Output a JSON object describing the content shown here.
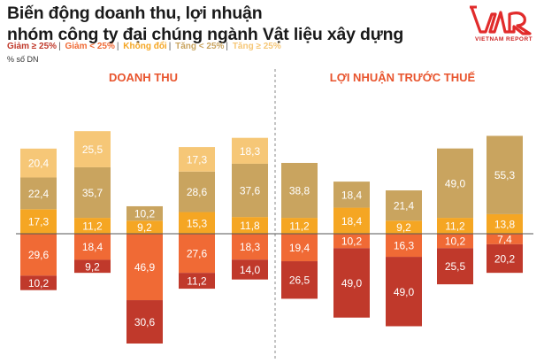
{
  "header": {
    "title_line1": "Biến động doanh thu, lợi nhuận",
    "title_line2": "nhóm công ty đại chúng ngành Vật liệu xây dựng",
    "unit": "% số DN"
  },
  "brand": {
    "logo_text": "VNR",
    "logo_sub": "VIETNAM REPORT",
    "color": "#e12b2b"
  },
  "legend": [
    {
      "label": "Giảm ≥ 25%",
      "color": "#c0392b"
    },
    {
      "label": "Giảm < 25%",
      "color": "#f06a35"
    },
    {
      "label": "Không đổi",
      "color": "#f5a623"
    },
    {
      "label": "Tăng < 25%",
      "color": "#c9a45f"
    },
    {
      "label": "Tăng ≥ 25%",
      "color": "#f6c777"
    }
  ],
  "chart_data": {
    "type": "bar",
    "stacking": "diverging",
    "groups": [
      {
        "title": "DOANH THU",
        "title_color": "#e8542d"
      },
      {
        "title": "LỢI NHUẬN TRƯỚC THUẾ",
        "title_color": "#e8542d"
      }
    ],
    "columns": [
      {
        "group": 0,
        "up": [
          17.3,
          22.4,
          20.4
        ],
        "down": [
          29.6,
          10.2
        ]
      },
      {
        "group": 0,
        "up": [
          11.2,
          35.7,
          25.5
        ],
        "down": [
          18.4,
          9.2
        ]
      },
      {
        "group": 0,
        "up": [
          9.2,
          10.2
        ],
        "down": [
          46.9,
          30.6
        ]
      },
      {
        "group": 0,
        "up": [
          15.3,
          28.6,
          17.3
        ],
        "down": [
          27.6,
          11.2
        ]
      },
      {
        "group": 0,
        "up": [
          11.8,
          37.6,
          18.3
        ],
        "down": [
          18.3,
          14.0
        ]
      },
      {
        "group": 1,
        "up": [
          11.2,
          38.8
        ],
        "down": [
          19.4,
          26.5
        ]
      },
      {
        "group": 1,
        "up": [
          18.4,
          18.4
        ],
        "down": [
          10.2,
          49.0
        ]
      },
      {
        "group": 1,
        "up": [
          9.2,
          21.4
        ],
        "down": [
          16.3,
          49.0
        ]
      },
      {
        "group": 1,
        "up": [
          11.2,
          49.0
        ],
        "down": [
          10.2,
          25.5
        ]
      },
      {
        "group": 1,
        "up": [
          13.8,
          55.3
        ],
        "down": [
          7.4,
          20.2
        ]
      }
    ],
    "up_colors": [
      "#f5a623",
      "#c9a45f",
      "#f6c777"
    ],
    "down_colors": [
      "#f06a35",
      "#c0392b"
    ],
    "decimal_separator": ","
  }
}
